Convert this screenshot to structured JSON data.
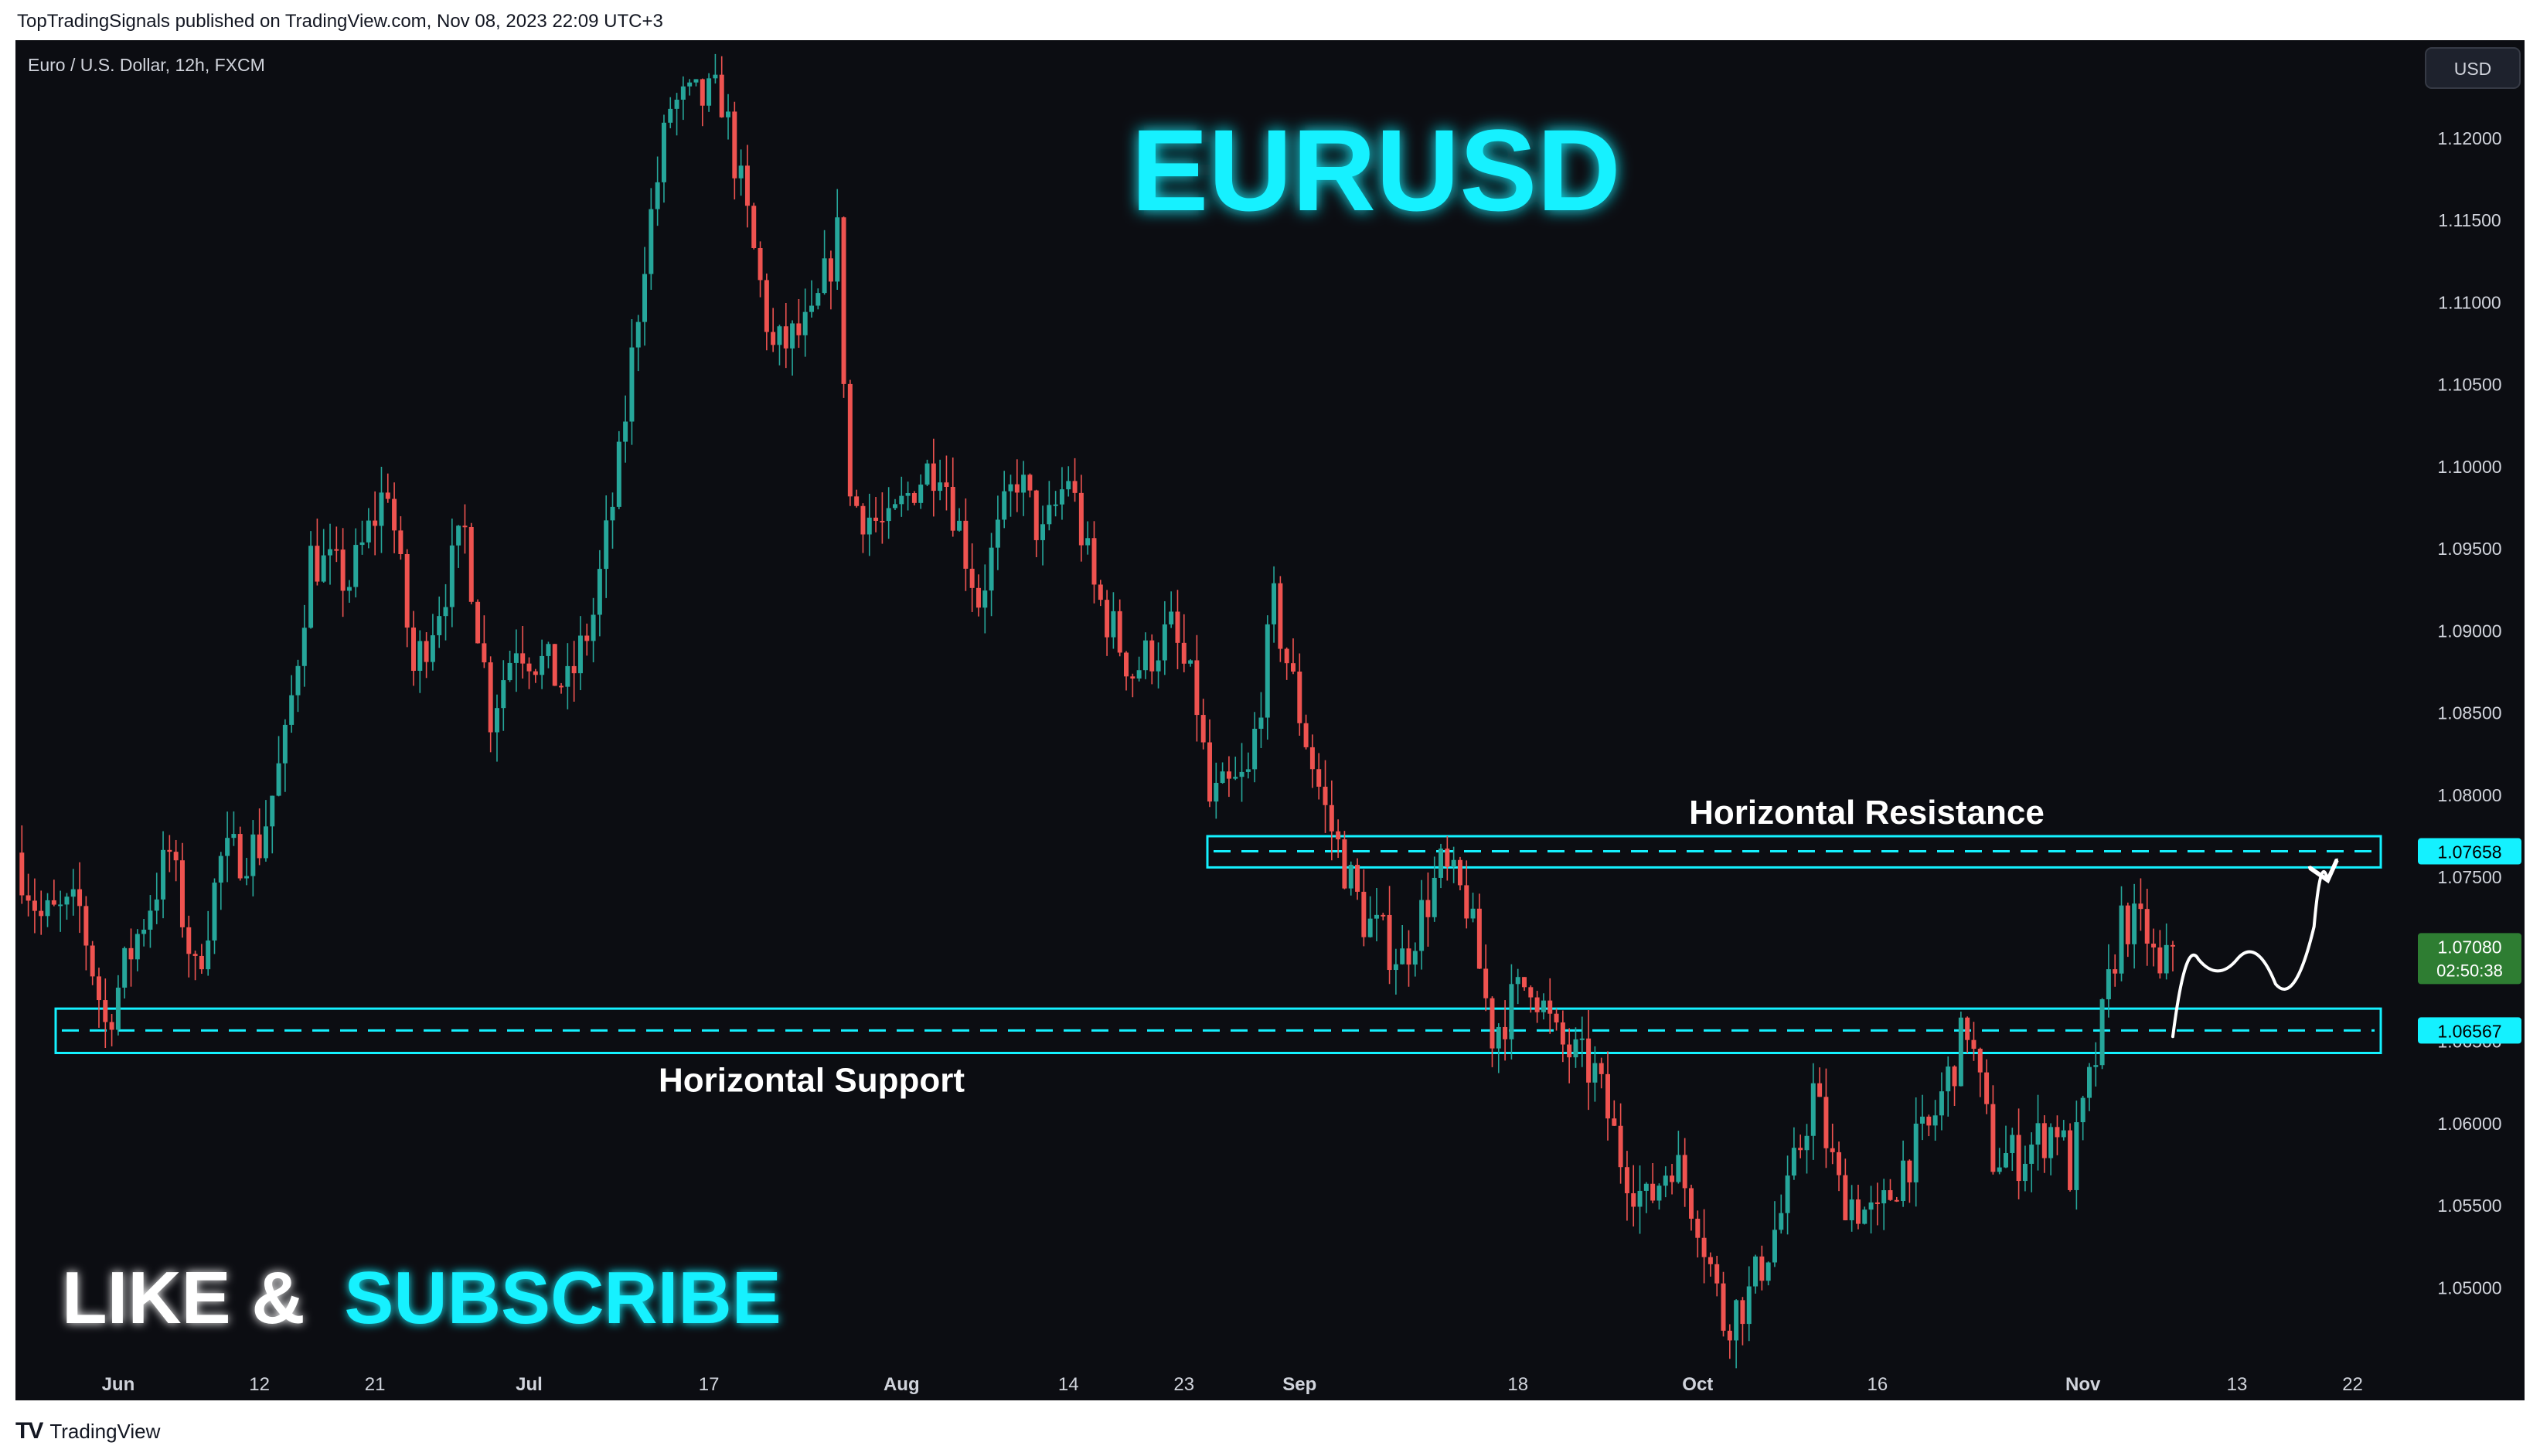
{
  "header": {
    "publish_text": "TopTradingSignals published on TradingView.com, Nov 08, 2023 22:09 UTC+3"
  },
  "footer": {
    "brand": "TradingView",
    "logo_icon": "tradingview-logo-icon"
  },
  "colors": {
    "background": "#0c0d12",
    "up": "#26a69a",
    "down": "#ef5350",
    "cyan": "#14f1ff",
    "level": "#00bcd4",
    "axis_text": "#d1d4dc"
  },
  "chart_data": {
    "type": "candlestick",
    "symbol_text": "Euro / U.S. Dollar, 12h, FXCM",
    "title": "EURUSD",
    "cta_like": "LIKE &",
    "cta_subscribe": "SUBSCRIBE",
    "currency_button": "USD",
    "ylim": [
      1.0455,
      1.1255
    ],
    "y_ticks": [
      1.05,
      1.055,
      1.06,
      1.065,
      1.07,
      1.075,
      1.08,
      1.085,
      1.09,
      1.095,
      1.1,
      1.105,
      1.11,
      1.115,
      1.12
    ],
    "y_tick_labels": [
      "1.05000",
      "1.05500",
      "1.06000",
      "1.06500",
      "1.07000",
      "1.07500",
      "1.08000",
      "1.08500",
      "1.09000",
      "1.09500",
      "1.10000",
      "1.10500",
      "1.11000",
      "1.11500",
      "1.12000"
    ],
    "x_domain": [
      "2023-05-24",
      "2023-11-26"
    ],
    "x_ticks": [
      {
        "date": "2023-06-01",
        "label": "Jun",
        "bold": true
      },
      {
        "date": "2023-06-12",
        "label": "12",
        "bold": false
      },
      {
        "date": "2023-06-21",
        "label": "21",
        "bold": false
      },
      {
        "date": "2023-07-03",
        "label": "Jul",
        "bold": true
      },
      {
        "date": "2023-07-17",
        "label": "17",
        "bold": false
      },
      {
        "date": "2023-08-01",
        "label": "Aug",
        "bold": true
      },
      {
        "date": "2023-08-14",
        "label": "14",
        "bold": false
      },
      {
        "date": "2023-08-23",
        "label": "23",
        "bold": false
      },
      {
        "date": "2023-09-01",
        "label": "Sep",
        "bold": true
      },
      {
        "date": "2023-09-18",
        "label": "18",
        "bold": false
      },
      {
        "date": "2023-10-02",
        "label": "Oct",
        "bold": true
      },
      {
        "date": "2023-10-16",
        "label": "16",
        "bold": false
      },
      {
        "date": "2023-11-01",
        "label": "Nov",
        "bold": true
      },
      {
        "date": "2023-11-13",
        "label": "13",
        "bold": false
      },
      {
        "date": "2023-11-22",
        "label": "22",
        "bold": false
      }
    ],
    "price_path": [
      {
        "date": "2023-05-24",
        "close": 1.0765
      },
      {
        "date": "2023-05-26",
        "close": 1.0725
      },
      {
        "date": "2023-05-29",
        "close": 1.073
      },
      {
        "date": "2023-05-31",
        "close": 1.066
      },
      {
        "date": "2023-06-02",
        "close": 1.0705
      },
      {
        "date": "2023-06-05",
        "close": 1.0765
      },
      {
        "date": "2023-06-07",
        "close": 1.069
      },
      {
        "date": "2023-06-09",
        "close": 1.076
      },
      {
        "date": "2023-06-12",
        "close": 1.077
      },
      {
        "date": "2023-06-14",
        "close": 1.083
      },
      {
        "date": "2023-06-16",
        "close": 1.0945
      },
      {
        "date": "2023-06-19",
        "close": 1.093
      },
      {
        "date": "2023-06-21",
        "close": 1.097
      },
      {
        "date": "2023-06-22",
        "close": 1.099
      },
      {
        "date": "2023-06-24",
        "close": 1.0875
      },
      {
        "date": "2023-06-28",
        "close": 1.096
      },
      {
        "date": "2023-06-30",
        "close": 1.085
      },
      {
        "date": "2023-07-02",
        "close": 1.0895
      },
      {
        "date": "2023-07-06",
        "close": 1.0865
      },
      {
        "date": "2023-07-08",
        "close": 1.091
      },
      {
        "date": "2023-07-10",
        "close": 1.1
      },
      {
        "date": "2023-07-12",
        "close": 1.113
      },
      {
        "date": "2023-07-14",
        "close": 1.122
      },
      {
        "date": "2023-07-18",
        "close": 1.1225
      },
      {
        "date": "2023-07-20",
        "close": 1.115
      },
      {
        "date": "2023-07-22",
        "close": 1.107
      },
      {
        "date": "2023-07-25",
        "close": 1.1085
      },
      {
        "date": "2023-07-27",
        "close": 1.114
      },
      {
        "date": "2023-07-28",
        "close": 1.098
      },
      {
        "date": "2023-07-31",
        "close": 1.096
      },
      {
        "date": "2023-08-02",
        "close": 1.099
      },
      {
        "date": "2023-08-04",
        "close": 1.1005
      },
      {
        "date": "2023-08-07",
        "close": 1.092
      },
      {
        "date": "2023-08-10",
        "close": 1.0995
      },
      {
        "date": "2023-08-12",
        "close": 1.0955
      },
      {
        "date": "2023-08-14",
        "close": 1.0995
      },
      {
        "date": "2023-08-16",
        "close": 1.0925
      },
      {
        "date": "2023-08-19",
        "close": 1.0875
      },
      {
        "date": "2023-08-22",
        "close": 1.09
      },
      {
        "date": "2023-08-24",
        "close": 1.0855
      },
      {
        "date": "2023-08-25",
        "close": 1.0795
      },
      {
        "date": "2023-08-28",
        "close": 1.081
      },
      {
        "date": "2023-08-30",
        "close": 1.0915
      },
      {
        "date": "2023-09-01",
        "close": 1.085
      },
      {
        "date": "2023-09-03",
        "close": 1.079
      },
      {
        "date": "2023-09-06",
        "close": 1.0725
      },
      {
        "date": "2023-09-09",
        "close": 1.07
      },
      {
        "date": "2023-09-12",
        "close": 1.0755
      },
      {
        "date": "2023-09-14",
        "close": 1.0735
      },
      {
        "date": "2023-09-16",
        "close": 1.0655
      },
      {
        "date": "2023-09-19",
        "close": 1.069
      },
      {
        "date": "2023-09-21",
        "close": 1.065
      },
      {
        "date": "2023-09-24",
        "close": 1.063
      },
      {
        "date": "2023-09-26",
        "close": 1.058
      },
      {
        "date": "2023-09-28",
        "close": 1.055
      },
      {
        "date": "2023-09-30",
        "close": 1.058
      },
      {
        "date": "2023-10-02",
        "close": 1.0545
      },
      {
        "date": "2023-10-04",
        "close": 1.048
      },
      {
        "date": "2023-10-06",
        "close": 1.0495
      },
      {
        "date": "2023-10-09",
        "close": 1.0555
      },
      {
        "date": "2023-10-11",
        "close": 1.062
      },
      {
        "date": "2023-10-13",
        "close": 1.056
      },
      {
        "date": "2023-10-16",
        "close": 1.054
      },
      {
        "date": "2023-10-18",
        "close": 1.0575
      },
      {
        "date": "2023-10-20",
        "close": 1.0595
      },
      {
        "date": "2023-10-23",
        "close": 1.066
      },
      {
        "date": "2023-10-25",
        "close": 1.058
      },
      {
        "date": "2023-10-27",
        "close": 1.058
      },
      {
        "date": "2023-10-30",
        "close": 1.06
      },
      {
        "date": "2023-10-31",
        "close": 1.057
      },
      {
        "date": "2023-11-02",
        "close": 1.064
      },
      {
        "date": "2023-11-04",
        "close": 1.0725
      },
      {
        "date": "2023-11-06",
        "close": 1.0715
      },
      {
        "date": "2023-11-07",
        "close": 1.0685
      },
      {
        "date": "2023-11-08",
        "close": 1.0708
      }
    ],
    "resistance": {
      "label": "Horizontal Resistance",
      "value": 1.07658,
      "value_label": "1.07658",
      "zone": [
        1.0756,
        1.0775
      ]
    },
    "support": {
      "label": "Horizontal Support",
      "value": 1.06567,
      "value_label": "1.06567",
      "zone": [
        1.0643,
        1.067
      ]
    },
    "current_price": {
      "value": 1.0708,
      "value_label": "1.07080",
      "countdown": "02:50:38"
    },
    "projection": [
      {
        "date": "2023-11-08",
        "price": 1.0653
      },
      {
        "date": "2023-11-10",
        "price": 1.07
      },
      {
        "date": "2023-11-13",
        "price": 1.07
      },
      {
        "date": "2023-11-16",
        "price": 1.0685
      },
      {
        "date": "2023-11-19",
        "price": 1.072
      },
      {
        "date": "2023-11-20",
        "price": 1.075
      }
    ]
  }
}
